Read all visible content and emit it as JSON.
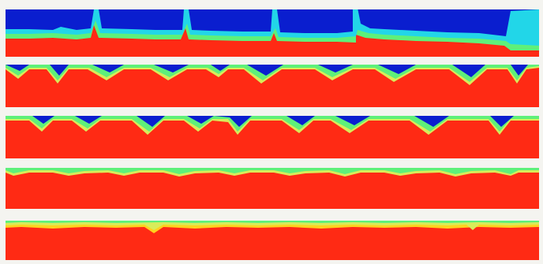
{
  "figure": {
    "description_free": true,
    "panel_count": 5,
    "colormap": [
      "#0a1ecf",
      "#1e6cff",
      "#22d6e8",
      "#5ef07a",
      "#d8ec5a",
      "#ffd21e",
      "#ff2a14"
    ]
  },
  "colors": {
    "background": "#f4f4f0",
    "deep_blue": "#0a1ecf",
    "blue": "#1e6cff",
    "cyan": "#22d6e8",
    "green": "#5ef07a",
    "yellow": "#d8ec5a",
    "orange": "#ffd21e",
    "red": "#ff2a14"
  }
}
